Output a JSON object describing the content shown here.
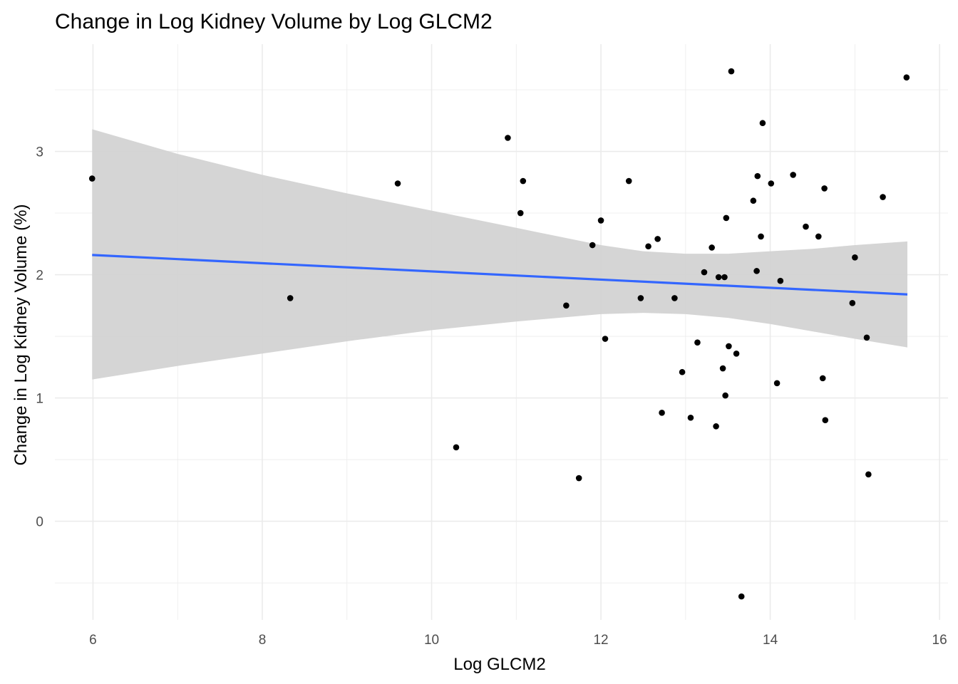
{
  "chart_data": {
    "type": "scatter",
    "title": "Change in Log Kidney Volume by Log GLCM2",
    "xlabel": "Log GLCM2",
    "ylabel": "Change in Log Kidney Volume (%)",
    "xlim": [
      5.55,
      16.1
    ],
    "ylim": [
      -0.8,
      3.87
    ],
    "x_ticks": [
      6,
      8,
      10,
      12,
      14,
      16
    ],
    "x_tick_labels": [
      "6",
      "8",
      "10",
      "12",
      "14",
      "16"
    ],
    "y_ticks": [
      0,
      1,
      2,
      3
    ],
    "y_tick_labels": [
      "0",
      "1",
      "2",
      "3"
    ],
    "grid": true,
    "legend": "none",
    "colors": {
      "points": "#000000",
      "trend_line": "#3366ff",
      "confidence_band": "#d3d3d3",
      "grid": "#ebebeb"
    },
    "points": [
      {
        "x": 5.99,
        "y": 2.78
      },
      {
        "x": 8.33,
        "y": 1.81
      },
      {
        "x": 9.6,
        "y": 2.74
      },
      {
        "x": 10.29,
        "y": 0.6
      },
      {
        "x": 10.9,
        "y": 3.11
      },
      {
        "x": 11.05,
        "y": 2.5
      },
      {
        "x": 11.08,
        "y": 2.76
      },
      {
        "x": 11.59,
        "y": 1.75
      },
      {
        "x": 11.74,
        "y": 0.35
      },
      {
        "x": 11.9,
        "y": 2.24
      },
      {
        "x": 12.0,
        "y": 2.44
      },
      {
        "x": 12.05,
        "y": 1.48
      },
      {
        "x": 12.33,
        "y": 2.76
      },
      {
        "x": 12.47,
        "y": 1.81
      },
      {
        "x": 12.56,
        "y": 2.23
      },
      {
        "x": 12.67,
        "y": 2.29
      },
      {
        "x": 12.72,
        "y": 0.88
      },
      {
        "x": 12.87,
        "y": 1.81
      },
      {
        "x": 12.96,
        "y": 1.21
      },
      {
        "x": 13.06,
        "y": 0.84
      },
      {
        "x": 13.14,
        "y": 1.45
      },
      {
        "x": 13.22,
        "y": 2.02
      },
      {
        "x": 13.31,
        "y": 2.22
      },
      {
        "x": 13.36,
        "y": 0.77
      },
      {
        "x": 13.39,
        "y": 1.98
      },
      {
        "x": 13.44,
        "y": 1.24
      },
      {
        "x": 13.46,
        "y": 1.98
      },
      {
        "x": 13.47,
        "y": 1.02
      },
      {
        "x": 13.48,
        "y": 2.46
      },
      {
        "x": 13.51,
        "y": 1.42
      },
      {
        "x": 13.54,
        "y": 3.65
      },
      {
        "x": 13.6,
        "y": 1.36
      },
      {
        "x": 13.66,
        "y": -0.61
      },
      {
        "x": 13.8,
        "y": 2.6
      },
      {
        "x": 13.84,
        "y": 2.03
      },
      {
        "x": 13.85,
        "y": 2.8
      },
      {
        "x": 13.89,
        "y": 2.31
      },
      {
        "x": 13.91,
        "y": 3.23
      },
      {
        "x": 14.01,
        "y": 2.74
      },
      {
        "x": 14.08,
        "y": 1.12
      },
      {
        "x": 14.12,
        "y": 1.95
      },
      {
        "x": 14.27,
        "y": 2.81
      },
      {
        "x": 14.42,
        "y": 2.39
      },
      {
        "x": 14.57,
        "y": 2.31
      },
      {
        "x": 14.62,
        "y": 1.16
      },
      {
        "x": 14.64,
        "y": 2.7
      },
      {
        "x": 14.65,
        "y": 0.82
      },
      {
        "x": 14.97,
        "y": 1.77
      },
      {
        "x": 15.0,
        "y": 2.14
      },
      {
        "x": 15.14,
        "y": 1.49
      },
      {
        "x": 15.16,
        "y": 0.38
      },
      {
        "x": 15.33,
        "y": 2.63
      },
      {
        "x": 15.61,
        "y": 3.6
      }
    ],
    "trend_line": {
      "x": [
        5.99,
        15.62
      ],
      "y": [
        2.16,
        1.84
      ]
    },
    "confidence_band": {
      "x": [
        5.99,
        7.0,
        8.0,
        9.0,
        10.0,
        11.0,
        12.0,
        12.5,
        13.0,
        13.5,
        14.0,
        14.5,
        15.0,
        15.62
      ],
      "upper": [
        3.18,
        2.98,
        2.81,
        2.66,
        2.52,
        2.38,
        2.24,
        2.19,
        2.17,
        2.17,
        2.19,
        2.21,
        2.24,
        2.27
      ],
      "lower": [
        1.15,
        1.26,
        1.36,
        1.46,
        1.55,
        1.62,
        1.68,
        1.69,
        1.68,
        1.65,
        1.6,
        1.54,
        1.48,
        1.41
      ]
    }
  }
}
